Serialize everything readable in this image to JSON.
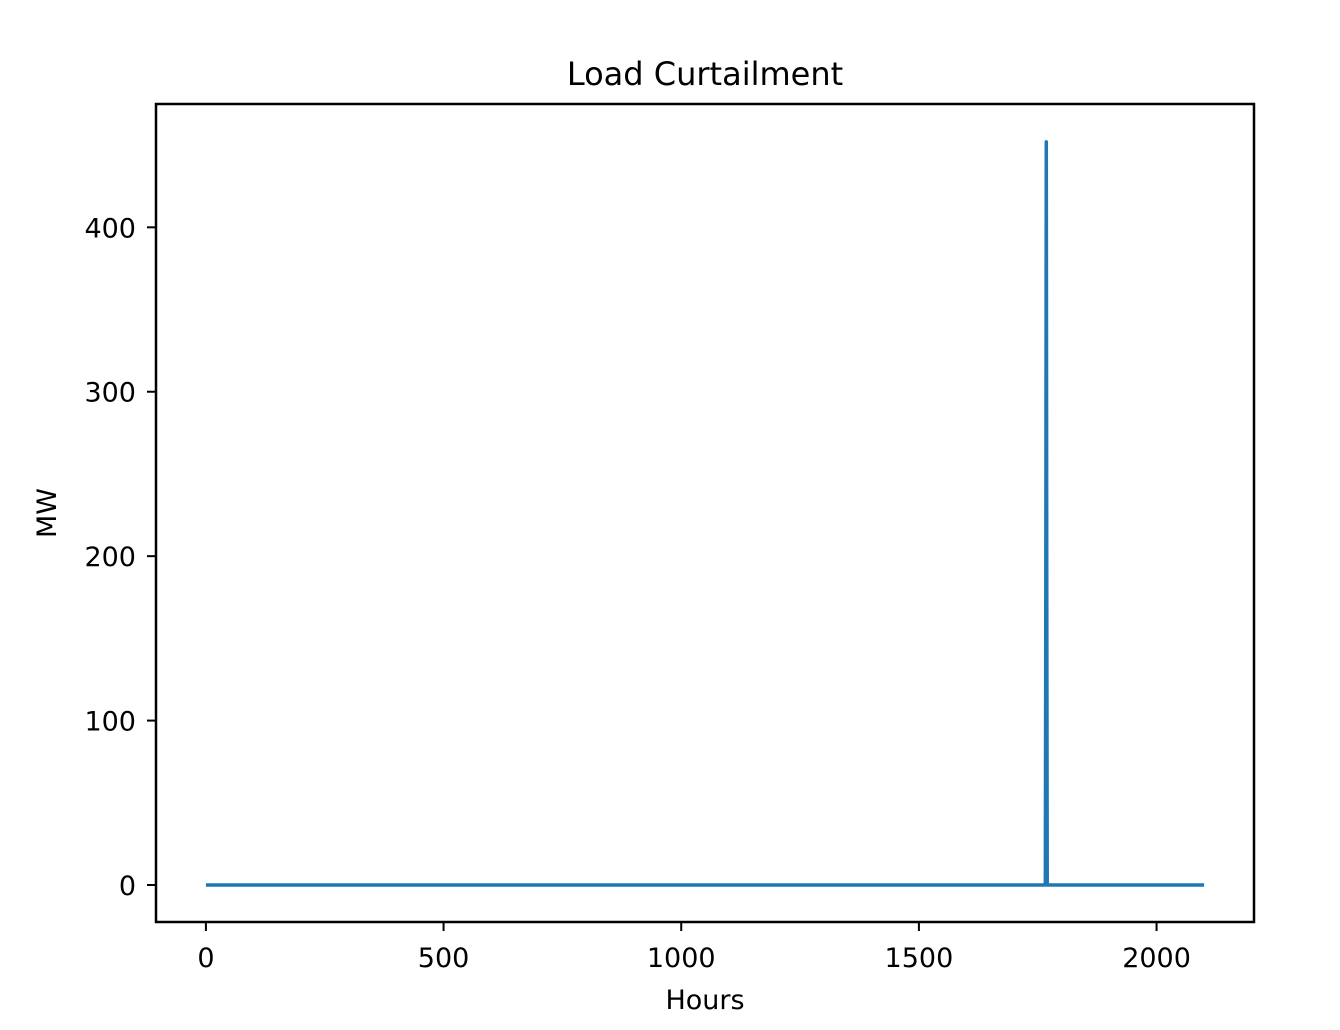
{
  "chart_data": {
    "type": "line",
    "title": "Load Curtailment",
    "xlabel": "Hours",
    "ylabel": "MW",
    "xlim": [
      -105,
      2205
    ],
    "ylim": [
      -22.5,
      475
    ],
    "xticks": [
      0,
      500,
      1000,
      1500,
      2000
    ],
    "xtick_labels": [
      "0",
      "500",
      "1000",
      "1500",
      "2000"
    ],
    "yticks": [
      0,
      100,
      200,
      300,
      400
    ],
    "ytick_labels": [
      "0",
      "100",
      "200",
      "300",
      "400"
    ],
    "grid": false,
    "series": [
      {
        "color": "#1f77b4",
        "x": [
          0,
          1766,
          1767,
          1768,
          1769,
          1770,
          2100
        ],
        "y": [
          0,
          0,
          180,
          452,
          180,
          0,
          0
        ]
      }
    ]
  }
}
